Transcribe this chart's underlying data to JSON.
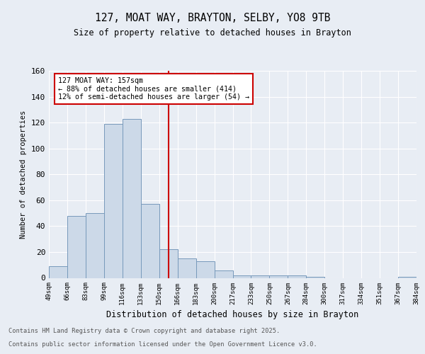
{
  "title": "127, MOAT WAY, BRAYTON, SELBY, YO8 9TB",
  "subtitle": "Size of property relative to detached houses in Brayton",
  "xlabel": "Distribution of detached houses by size in Brayton",
  "ylabel": "Number of detached properties",
  "bar_color": "#ccd9e8",
  "bar_edge_color": "#7799bb",
  "background_color": "#e8edf4",
  "grid_color": "#ffffff",
  "vline_index": 6.5,
  "annotation_title": "127 MOAT WAY: 157sqm",
  "annotation_line1": "← 88% of detached houses are smaller (414)",
  "annotation_line2": "12% of semi-detached houses are larger (54) →",
  "annotation_box_color": "#ffffff",
  "annotation_box_edge_color": "#cc0000",
  "vline_color": "#cc0000",
  "bin_labels": [
    "49sqm",
    "66sqm",
    "83sqm",
    "99sqm",
    "116sqm",
    "133sqm",
    "150sqm",
    "166sqm",
    "183sqm",
    "200sqm",
    "217sqm",
    "233sqm",
    "250sqm",
    "267sqm",
    "284sqm",
    "300sqm",
    "317sqm",
    "334sqm",
    "351sqm",
    "367sqm",
    "384sqm"
  ],
  "counts": [
    9,
    48,
    50,
    119,
    123,
    57,
    22,
    15,
    13,
    6,
    2,
    2,
    2,
    2,
    1,
    0,
    0,
    0,
    0,
    1
  ],
  "ylim": [
    0,
    160
  ],
  "yticks": [
    0,
    20,
    40,
    60,
    80,
    100,
    120,
    140,
    160
  ],
  "footer_line1": "Contains HM Land Registry data © Crown copyright and database right 2025.",
  "footer_line2": "Contains public sector information licensed under the Open Government Licence v3.0."
}
